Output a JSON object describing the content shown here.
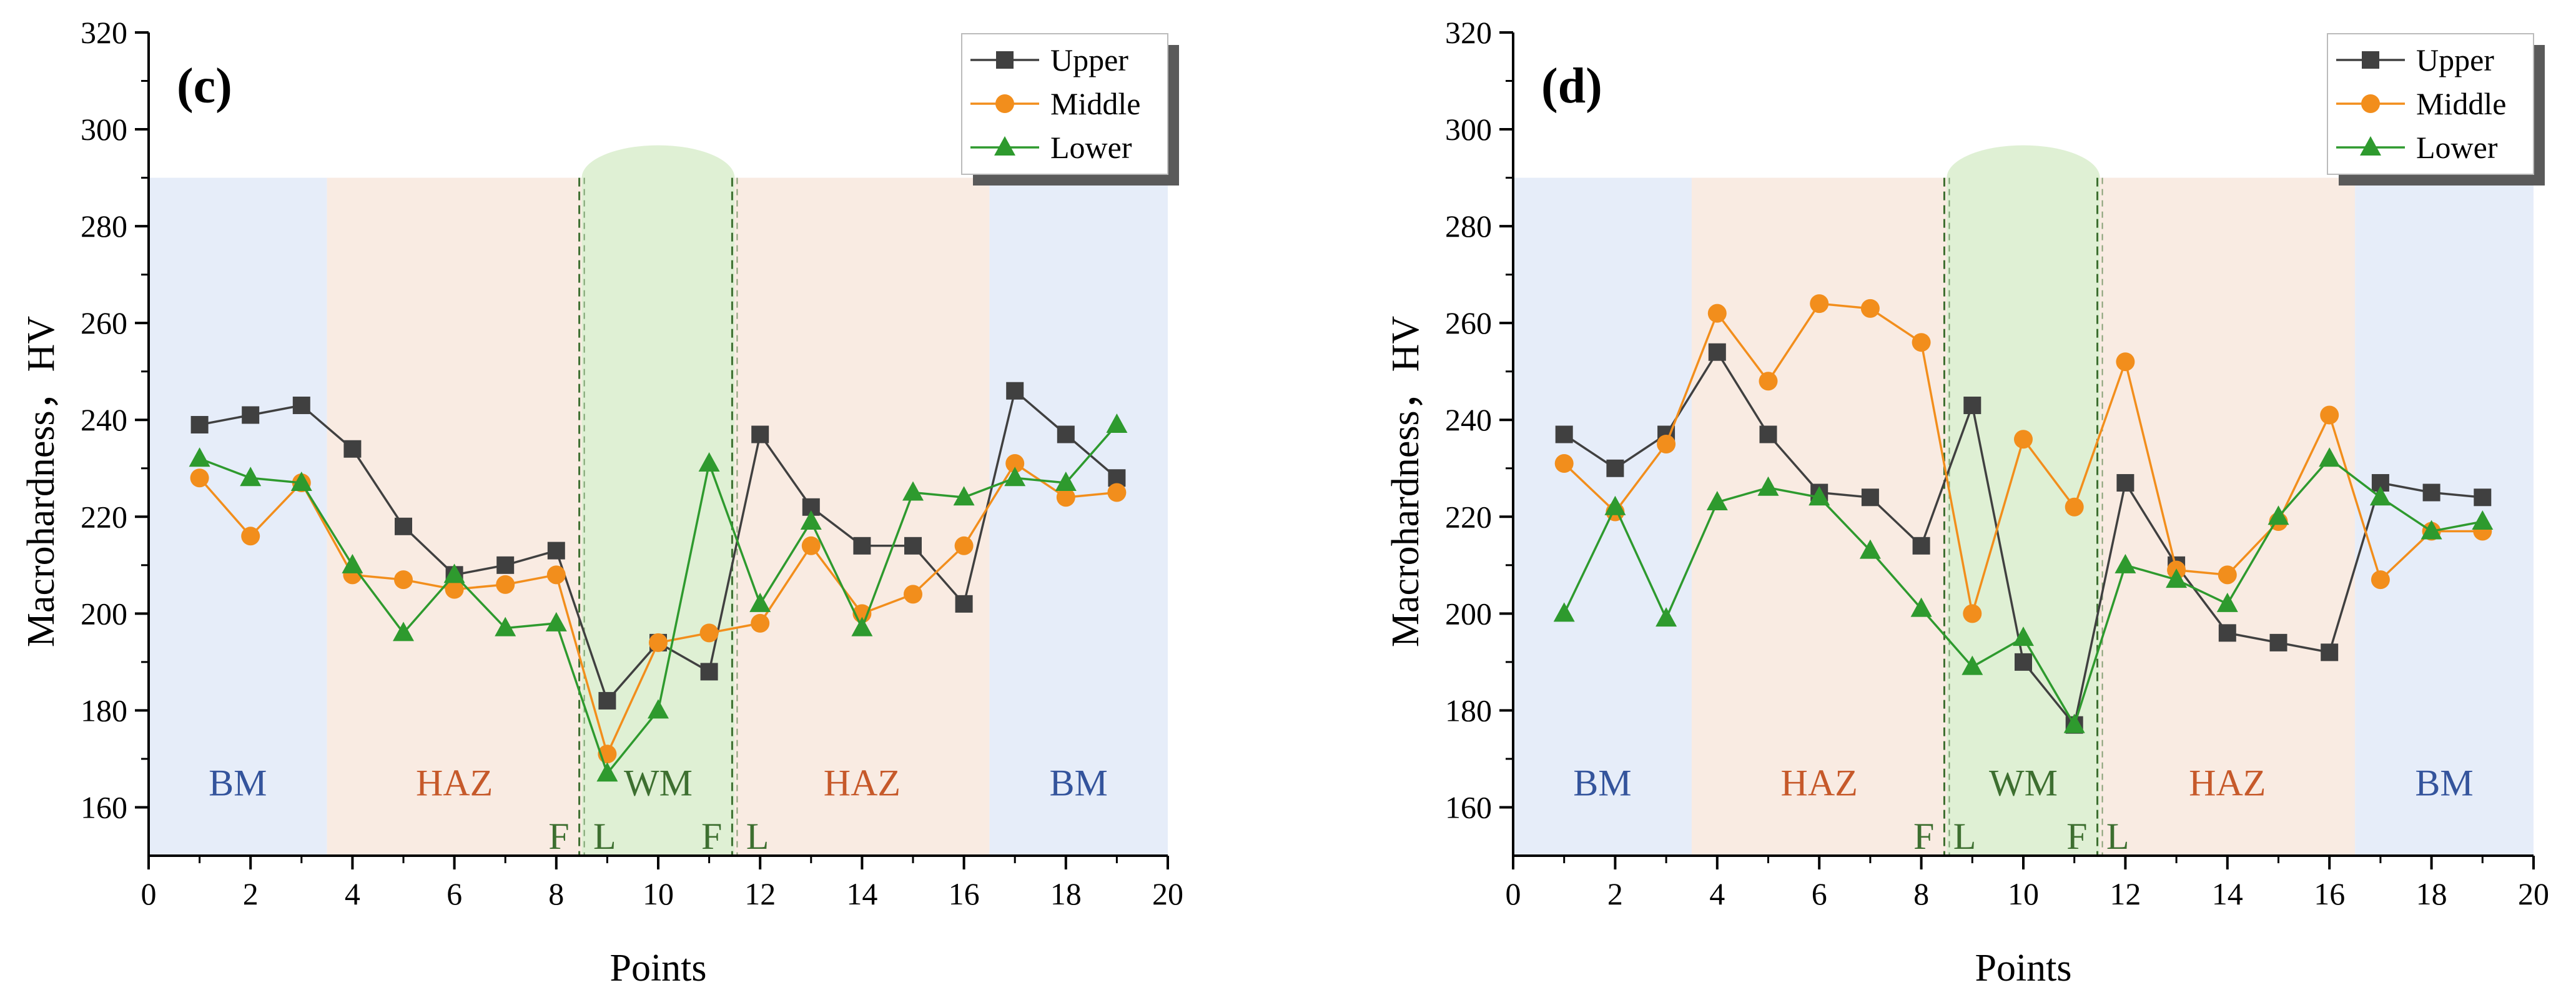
{
  "colors": {
    "upper": "#404040",
    "middle": "#f28e1c",
    "lower": "#2e9a2e",
    "bm_zone": "#e6edf9",
    "haz_zone": "#f9ebe2",
    "wm_zone": "#dff0d4",
    "bm_text": "#34549c",
    "haz_text": "#c6592a",
    "wm_text": "#3d6f30",
    "fl_line": "#3d6f30"
  },
  "chart_data": [
    {
      "type": "line",
      "panel_label": "(c)",
      "xlabel": "Points",
      "ylabel": "Macrohardness，HV",
      "xlim": [
        0,
        20
      ],
      "ylim": [
        150,
        320
      ],
      "xticks": [
        0,
        2,
        4,
        6,
        8,
        10,
        12,
        14,
        16,
        18,
        20
      ],
      "yticks": [
        160,
        180,
        200,
        220,
        240,
        260,
        280,
        300,
        320
      ],
      "legend_position": "top-right",
      "grid": false,
      "zones": [
        {
          "label": "BM",
          "kind": "bm",
          "x_range": [
            0,
            3.5
          ],
          "top": 290
        },
        {
          "label": "HAZ",
          "kind": "haz",
          "x_range": [
            3.5,
            8.5
          ],
          "top": 290
        },
        {
          "label": "WM",
          "kind": "wm",
          "x_range": [
            8.5,
            11.5
          ],
          "top": 290
        },
        {
          "label": "HAZ",
          "kind": "haz",
          "x_range": [
            11.5,
            16.5
          ],
          "top": 290
        },
        {
          "label": "BM",
          "kind": "bm",
          "x_range": [
            16.5,
            20
          ],
          "top": 290
        }
      ],
      "fusion_lines": [
        8.5,
        11.5
      ],
      "fl_labels": [
        {
          "text": "F",
          "x": 8.05
        },
        {
          "text": "L",
          "x": 8.95
        },
        {
          "text": "F",
          "x": 11.05
        },
        {
          "text": "L",
          "x": 11.95
        }
      ],
      "series": [
        {
          "name": "Upper",
          "marker": "square",
          "x": [
            1,
            2,
            3,
            4,
            5,
            6,
            7,
            8,
            9,
            10,
            11,
            12,
            13,
            14,
            15,
            16,
            17,
            18,
            19
          ],
          "values": [
            239,
            241,
            243,
            234,
            218,
            208,
            210,
            213,
            182,
            194,
            188,
            237,
            222,
            214,
            214,
            202,
            246,
            237,
            228
          ]
        },
        {
          "name": "Middle",
          "marker": "circle",
          "x": [
            1,
            2,
            3,
            4,
            5,
            6,
            7,
            8,
            9,
            10,
            11,
            12,
            13,
            14,
            15,
            16,
            17,
            18,
            19
          ],
          "values": [
            228,
            216,
            227,
            208,
            207,
            205,
            206,
            208,
            171,
            194,
            196,
            198,
            214,
            200,
            204,
            214,
            231,
            224,
            225
          ]
        },
        {
          "name": "Lower",
          "marker": "triangle",
          "x": [
            1,
            2,
            3,
            4,
            5,
            6,
            7,
            8,
            9,
            10,
            11,
            12,
            13,
            14,
            15,
            16,
            17,
            18,
            19
          ],
          "values": [
            232,
            228,
            227,
            210,
            196,
            208,
            197,
            198,
            167,
            180,
            231,
            202,
            219,
            197,
            225,
            224,
            228,
            227,
            239
          ]
        }
      ]
    },
    {
      "type": "line",
      "panel_label": "(d)",
      "xlabel": "Points",
      "ylabel": "Macrohardness，HV",
      "xlim": [
        0,
        20
      ],
      "ylim": [
        150,
        320
      ],
      "xticks": [
        0,
        2,
        4,
        6,
        8,
        10,
        12,
        14,
        16,
        18,
        20
      ],
      "yticks": [
        160,
        180,
        200,
        220,
        240,
        260,
        280,
        300,
        320
      ],
      "legend_position": "top-right",
      "grid": false,
      "zones": [
        {
          "label": "BM",
          "kind": "bm",
          "x_range": [
            0,
            3.5
          ],
          "top": 290
        },
        {
          "label": "HAZ",
          "kind": "haz",
          "x_range": [
            3.5,
            8.5
          ],
          "top": 290
        },
        {
          "label": "WM",
          "kind": "wm",
          "x_range": [
            8.5,
            11.5
          ],
          "top": 290
        },
        {
          "label": "HAZ",
          "kind": "haz",
          "x_range": [
            11.5,
            16.5
          ],
          "top": 290
        },
        {
          "label": "BM",
          "kind": "bm",
          "x_range": [
            16.5,
            20
          ],
          "top": 290
        }
      ],
      "fusion_lines": [
        8.5,
        11.5
      ],
      "fl_labels": [
        {
          "text": "F",
          "x": 8.05
        },
        {
          "text": "L",
          "x": 8.85
        },
        {
          "text": "F",
          "x": 11.05
        },
        {
          "text": "L",
          "x": 11.85
        }
      ],
      "series": [
        {
          "name": "Upper",
          "marker": "square",
          "x": [
            1,
            2,
            3,
            4,
            5,
            6,
            7,
            8,
            9,
            10,
            11,
            12,
            13,
            14,
            15,
            16,
            17,
            18,
            19
          ],
          "values": [
            237,
            230,
            237,
            254,
            237,
            225,
            224,
            214,
            243,
            190,
            177,
            227,
            210,
            196,
            194,
            192,
            227,
            225,
            224
          ]
        },
        {
          "name": "Middle",
          "marker": "circle",
          "x": [
            1,
            2,
            3,
            4,
            5,
            6,
            7,
            8,
            9,
            10,
            11,
            12,
            13,
            14,
            15,
            16,
            17,
            18,
            19
          ],
          "values": [
            231,
            221,
            235,
            262,
            248,
            264,
            263,
            256,
            200,
            236,
            222,
            252,
            209,
            208,
            219,
            241,
            207,
            217,
            217
          ]
        },
        {
          "name": "Lower",
          "marker": "triangle",
          "x": [
            1,
            2,
            3,
            4,
            5,
            6,
            7,
            8,
            9,
            10,
            11,
            12,
            13,
            14,
            15,
            16,
            17,
            18,
            19
          ],
          "values": [
            200,
            222,
            199,
            223,
            226,
            224,
            213,
            201,
            189,
            195,
            177,
            210,
            207,
            202,
            220,
            232,
            224,
            217,
            219
          ]
        }
      ]
    }
  ]
}
